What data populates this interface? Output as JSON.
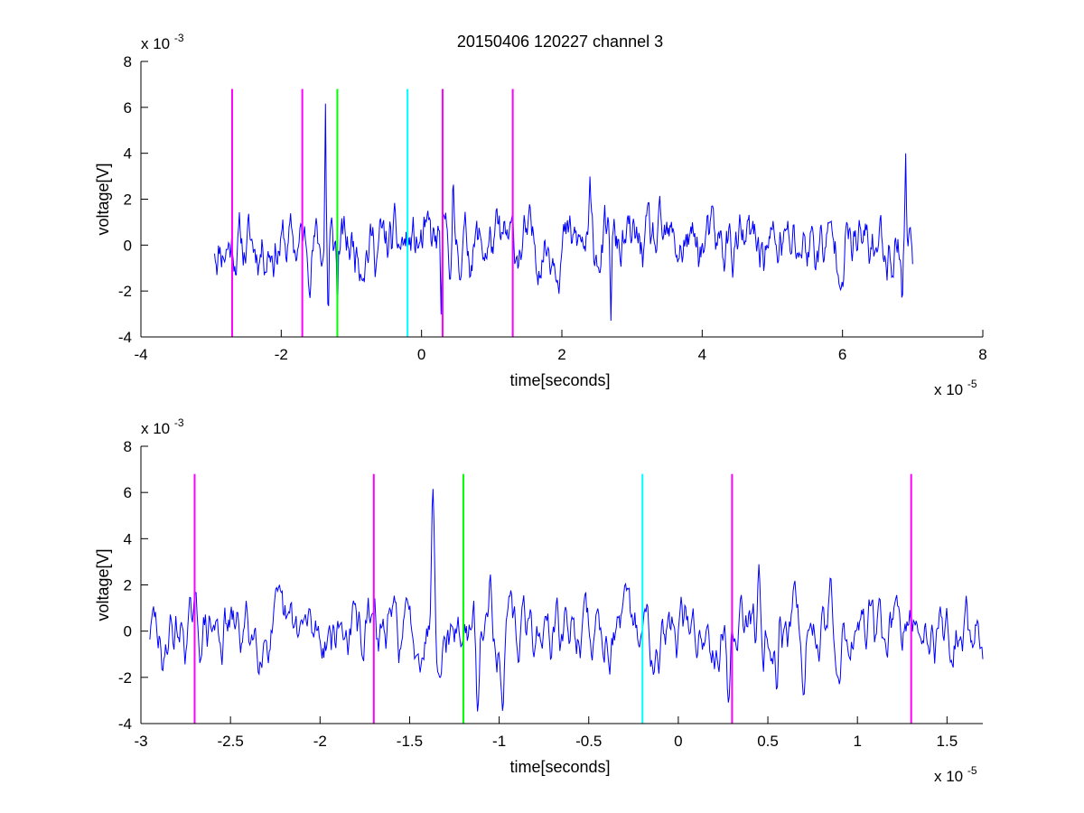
{
  "figure": {
    "title": "20150406 120227 channel 3"
  },
  "chart_data": [
    {
      "type": "line",
      "xlabel": "time[seconds]",
      "ylabel": "voltage[V]",
      "x_exponent_label": "x 10",
      "x_exponent": "-5",
      "y_exponent_label": "x 10",
      "y_exponent": "-3",
      "xlim": [
        -4,
        8
      ],
      "ylim": [
        -4,
        8
      ],
      "xticks": [
        -4,
        -2,
        0,
        2,
        4,
        6,
        8
      ],
      "yticks": [
        -4,
        -2,
        0,
        2,
        4,
        6,
        8
      ],
      "xtick_labels": [
        "-4",
        "-2",
        "0",
        "2",
        "4",
        "6",
        "8"
      ],
      "ytick_labels": [
        "-4",
        "-2",
        "0",
        "2",
        "4",
        "6",
        "8"
      ],
      "series": [
        {
          "color": "#0000ff",
          "x_range": [
            -2.95,
            7.0
          ],
          "noise_seed": 11,
          "spikes": [
            [
              -1.37,
              6.2
            ],
            [
              -1.33,
              -3.2
            ],
            [
              -1.2,
              -3.0
            ],
            [
              0.28,
              -3.1
            ],
            [
              0.45,
              2.9
            ],
            [
              2.4,
              3.0
            ],
            [
              2.7,
              -3.3
            ],
            [
              6.9,
              4.0
            ],
            [
              6.85,
              -2.6
            ]
          ]
        }
      ],
      "markers": [
        {
          "x": -2.7,
          "color": "#ff00ff"
        },
        {
          "x": -1.7,
          "color": "#ff00ff"
        },
        {
          "x": -1.2,
          "color": "#00ff00"
        },
        {
          "x": -0.2,
          "color": "#00ffff"
        },
        {
          "x": 0.3,
          "color": "#ff00ff"
        },
        {
          "x": 1.3,
          "color": "#ff00ff"
        }
      ],
      "marker_range": [
        -4,
        6.8
      ]
    },
    {
      "type": "line",
      "xlabel": "time[seconds]",
      "ylabel": "voltage[V]",
      "x_exponent_label": "x 10",
      "x_exponent": "-5",
      "y_exponent_label": "x 10",
      "y_exponent": "-3",
      "xlim": [
        -3.0,
        1.7
      ],
      "ylim": [
        -4,
        8
      ],
      "xticks": [
        -3,
        -2.5,
        -2,
        -1.5,
        -1,
        -0.5,
        0,
        0.5,
        1,
        1.5
      ],
      "yticks": [
        -4,
        -2,
        0,
        2,
        4,
        6,
        8
      ],
      "xtick_labels": [
        "-3",
        "-2.5",
        "-2",
        "-1.5",
        "-1",
        "-0.5",
        "0",
        "0.5",
        "1",
        "1.5"
      ],
      "ytick_labels": [
        "-4",
        "-2",
        "0",
        "2",
        "4",
        "6",
        "8"
      ],
      "series": [
        {
          "color": "#0000ff",
          "x_range": [
            -2.95,
            1.7
          ],
          "noise_seed": 29,
          "spikes": [
            [
              -2.88,
              -1.8
            ],
            [
              -1.37,
              6.2
            ],
            [
              -1.33,
              -2.0
            ],
            [
              -1.12,
              -3.5
            ],
            [
              -1.05,
              2.5
            ],
            [
              -0.98,
              -3.5
            ],
            [
              0.28,
              -3.1
            ],
            [
              0.35,
              1.6
            ],
            [
              0.45,
              2.9
            ],
            [
              0.55,
              -2.6
            ],
            [
              0.65,
              2.2
            ],
            [
              0.7,
              -2.8
            ],
            [
              0.85,
              2.4
            ],
            [
              0.9,
              -2.3
            ]
          ]
        }
      ],
      "markers": [
        {
          "x": -2.7,
          "color": "#ff00ff"
        },
        {
          "x": -1.7,
          "color": "#ff00ff"
        },
        {
          "x": -1.2,
          "color": "#00ff00"
        },
        {
          "x": -0.2,
          "color": "#00ffff"
        },
        {
          "x": 0.3,
          "color": "#ff00ff"
        },
        {
          "x": 1.3,
          "color": "#ff00ff"
        }
      ],
      "marker_range": [
        -4,
        6.8
      ]
    }
  ]
}
